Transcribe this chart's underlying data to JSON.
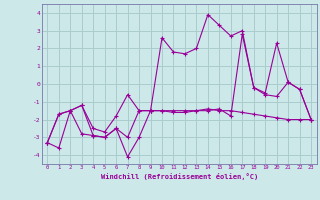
{
  "xlabel": "Windchill (Refroidissement éolien,°C)",
  "background_color": "#cce8e8",
  "grid_color": "#aacccc",
  "line_color": "#990099",
  "spine_color": "#7777aa",
  "xlim": [
    -0.5,
    23.5
  ],
  "ylim": [
    -4.5,
    4.5
  ],
  "yticks": [
    -4,
    -3,
    -2,
    -1,
    0,
    1,
    2,
    3,
    4
  ],
  "xticks": [
    0,
    1,
    2,
    3,
    4,
    5,
    6,
    7,
    8,
    9,
    10,
    11,
    12,
    13,
    14,
    15,
    16,
    17,
    18,
    19,
    20,
    21,
    22,
    23
  ],
  "series1": [
    [
      0,
      -3.3
    ],
    [
      1,
      -3.6
    ],
    [
      2,
      -1.5
    ],
    [
      3,
      -1.2
    ],
    [
      4,
      -2.9
    ],
    [
      5,
      -3.0
    ],
    [
      6,
      -2.5
    ],
    [
      7,
      -4.1
    ],
    [
      8,
      -3.0
    ],
    [
      9,
      -1.5
    ],
    [
      10,
      2.6
    ],
    [
      11,
      1.8
    ],
    [
      12,
      1.7
    ],
    [
      13,
      2.0
    ],
    [
      14,
      3.9
    ],
    [
      15,
      3.3
    ],
    [
      16,
      2.7
    ],
    [
      17,
      3.0
    ],
    [
      18,
      -0.2
    ],
    [
      19,
      -0.5
    ],
    [
      20,
      2.3
    ],
    [
      21,
      0.1
    ],
    [
      22,
      -0.3
    ],
    [
      23,
      -2.0
    ]
  ],
  "series2": [
    [
      0,
      -3.3
    ],
    [
      1,
      -1.7
    ],
    [
      2,
      -1.5
    ],
    [
      3,
      -1.2
    ],
    [
      4,
      -2.5
    ],
    [
      5,
      -2.7
    ],
    [
      6,
      -1.8
    ],
    [
      7,
      -0.6
    ],
    [
      8,
      -1.5
    ],
    [
      9,
      -1.5
    ],
    [
      10,
      -1.5
    ],
    [
      11,
      -1.6
    ],
    [
      12,
      -1.6
    ],
    [
      13,
      -1.5
    ],
    [
      14,
      -1.4
    ],
    [
      15,
      -1.5
    ],
    [
      16,
      -1.5
    ],
    [
      17,
      -1.6
    ],
    [
      18,
      -1.7
    ],
    [
      19,
      -1.8
    ],
    [
      20,
      -1.9
    ],
    [
      21,
      -2.0
    ],
    [
      22,
      -2.0
    ],
    [
      23,
      -2.0
    ]
  ],
  "series3": [
    [
      0,
      -3.3
    ],
    [
      1,
      -1.7
    ],
    [
      2,
      -1.5
    ],
    [
      3,
      -2.8
    ],
    [
      4,
      -2.9
    ],
    [
      5,
      -3.0
    ],
    [
      6,
      -2.5
    ],
    [
      7,
      -3.0
    ],
    [
      8,
      -1.5
    ],
    [
      9,
      -1.5
    ],
    [
      10,
      -1.5
    ],
    [
      11,
      -1.5
    ],
    [
      12,
      -1.5
    ],
    [
      13,
      -1.5
    ],
    [
      14,
      -1.5
    ],
    [
      15,
      -1.4
    ],
    [
      16,
      -1.8
    ],
    [
      17,
      2.8
    ],
    [
      18,
      -0.2
    ],
    [
      19,
      -0.6
    ],
    [
      20,
      -0.7
    ],
    [
      21,
      0.1
    ],
    [
      22,
      -0.3
    ],
    [
      23,
      -2.0
    ]
  ]
}
